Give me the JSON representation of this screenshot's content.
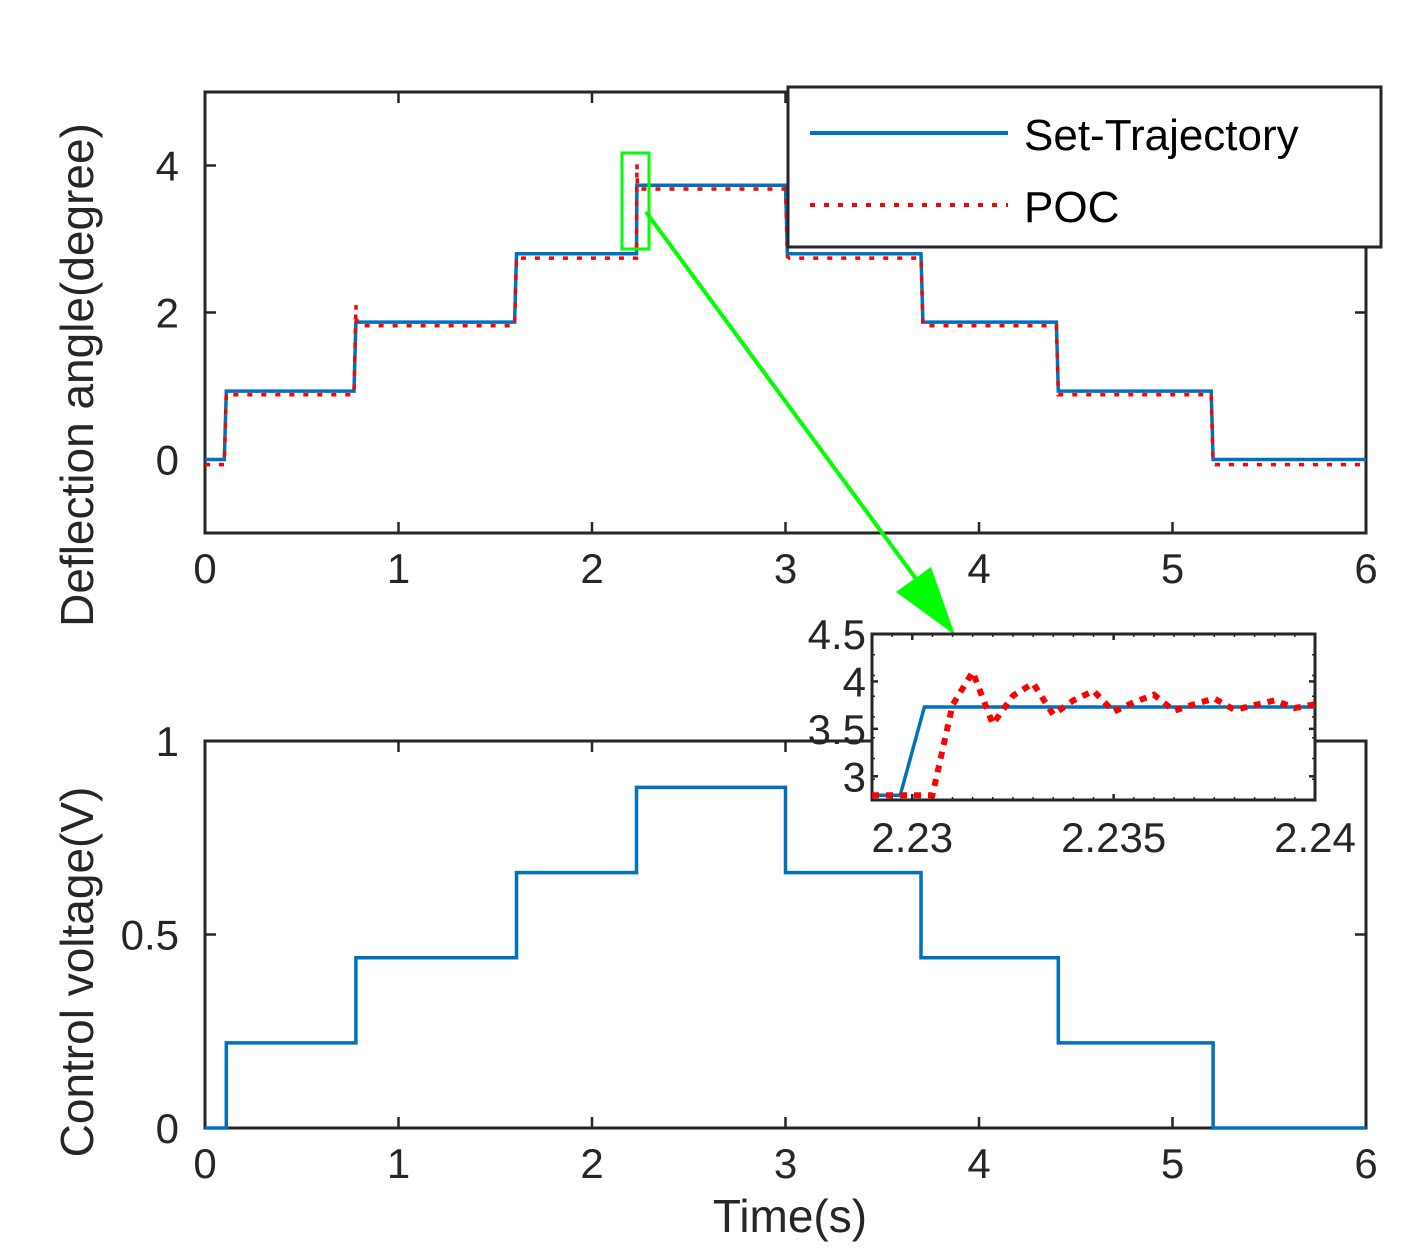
{
  "chart_data": [
    {
      "id": "top",
      "type": "line",
      "xlabel": "",
      "ylabel": "Deflection angle(degree)",
      "xlim": [
        0,
        6
      ],
      "ylim": [
        -1,
        5
      ],
      "xticks": [
        0,
        1,
        2,
        3,
        4,
        5,
        6
      ],
      "xtick_labels": [
        "0",
        "1",
        "2",
        "3",
        "4",
        "5",
        "6"
      ],
      "yticks": [
        0,
        2,
        4
      ],
      "ytick_labels": [
        "0",
        "2",
        "4"
      ],
      "legend": {
        "position": "top-right",
        "entries": [
          "Set-Trajectory",
          "POC"
        ]
      },
      "series": [
        {
          "name": "Set-Trajectory",
          "color": "#0072BD",
          "style": "solid",
          "x": [
            0,
            0.1,
            0.11,
            0.77,
            0.78,
            1.6,
            1.61,
            2.23,
            2.232,
            3.0,
            3.01,
            3.7,
            3.71,
            4.4,
            4.41,
            5.2,
            5.21,
            6.0
          ],
          "y": [
            0,
            0,
            0.93,
            0.93,
            1.87,
            1.87,
            2.8,
            2.8,
            3.73,
            3.73,
            2.8,
            2.8,
            1.87,
            1.87,
            0.93,
            0.93,
            0,
            0
          ]
        },
        {
          "name": "POC",
          "color": "#FF0000",
          "style": "dotted",
          "x": [
            0,
            0.1,
            0.11,
            0.12,
            0.77,
            0.78,
            0.785,
            0.79,
            1.6,
            1.61,
            1.62,
            2.23,
            2.232,
            2.235,
            2.24,
            3.0,
            3.01,
            3.02,
            3.7,
            3.71,
            3.72,
            4.4,
            4.41,
            4.42,
            5.2,
            5.21,
            5.22,
            6.0
          ],
          "y": [
            -0.07,
            -0.07,
            0.9,
            0.88,
            0.88,
            2.1,
            1.85,
            1.82,
            1.82,
            2.76,
            2.74,
            2.74,
            4.02,
            3.7,
            3.68,
            3.68,
            2.76,
            2.74,
            2.74,
            1.82,
            1.82,
            1.82,
            0.88,
            0.88,
            0.88,
            -0.06,
            -0.07,
            -0.07
          ]
        }
      ]
    },
    {
      "id": "inset",
      "type": "line",
      "xlim": [
        2.229,
        2.24
      ],
      "ylim": [
        2.75,
        4.5
      ],
      "xticks": [
        2.23,
        2.235,
        2.24
      ],
      "xtick_labels": [
        "2.23",
        "2.235",
        "2.24"
      ],
      "yticks": [
        3,
        3.5,
        4,
        4.5
      ],
      "ytick_labels": [
        "3",
        "3.5",
        "4",
        "4.5"
      ],
      "series": [
        {
          "name": "Set-Trajectory",
          "color": "#0072BD",
          "style": "solid",
          "x": [
            2.229,
            2.2297,
            2.2303,
            2.2307,
            2.24
          ],
          "y": [
            2.8,
            2.8,
            3.73,
            3.73,
            3.73
          ]
        },
        {
          "name": "POC",
          "color": "#FF0000",
          "style": "dotted",
          "x": [
            2.229,
            2.2298,
            2.2305,
            2.231,
            2.2315,
            2.232,
            2.2325,
            2.233,
            2.2335,
            2.234,
            2.2345,
            2.235,
            2.2355,
            2.236,
            2.2365,
            2.237,
            2.2375,
            2.238,
            2.2385,
            2.239,
            2.2395,
            2.24
          ],
          "y": [
            2.8,
            2.8,
            2.8,
            3.75,
            4.1,
            3.55,
            3.85,
            3.98,
            3.65,
            3.8,
            3.9,
            3.68,
            3.78,
            3.86,
            3.69,
            3.76,
            3.82,
            3.7,
            3.75,
            3.8,
            3.72,
            3.76
          ]
        }
      ]
    },
    {
      "id": "bottom",
      "type": "line",
      "xlabel": "Time(s)",
      "ylabel": "Control voltage(V)",
      "xlim": [
        0,
        6
      ],
      "ylim": [
        0,
        1
      ],
      "xticks": [
        0,
        1,
        2,
        3,
        4,
        5,
        6
      ],
      "xtick_labels": [
        "0",
        "1",
        "2",
        "3",
        "4",
        "5",
        "6"
      ],
      "yticks": [
        0,
        0.5,
        1
      ],
      "ytick_labels": [
        "0",
        "0.5",
        "1"
      ],
      "series": [
        {
          "name": "Control voltage",
          "color": "#0072BD",
          "style": "solid",
          "x": [
            0,
            0.11,
            0.11,
            0.78,
            0.78,
            1.61,
            1.61,
            2.23,
            2.23,
            3.0,
            3.0,
            3.7,
            3.7,
            4.41,
            4.41,
            5.21,
            5.21,
            6.0
          ],
          "y": [
            0,
            0,
            0.22,
            0.22,
            0.44,
            0.44,
            0.66,
            0.66,
            0.88,
            0.88,
            0.66,
            0.66,
            0.44,
            0.44,
            0.22,
            0.22,
            0,
            0
          ]
        }
      ]
    }
  ],
  "colors": {
    "zoom_box": "#00FF00",
    "arrow": "#00FF00",
    "axis": "#262626"
  }
}
